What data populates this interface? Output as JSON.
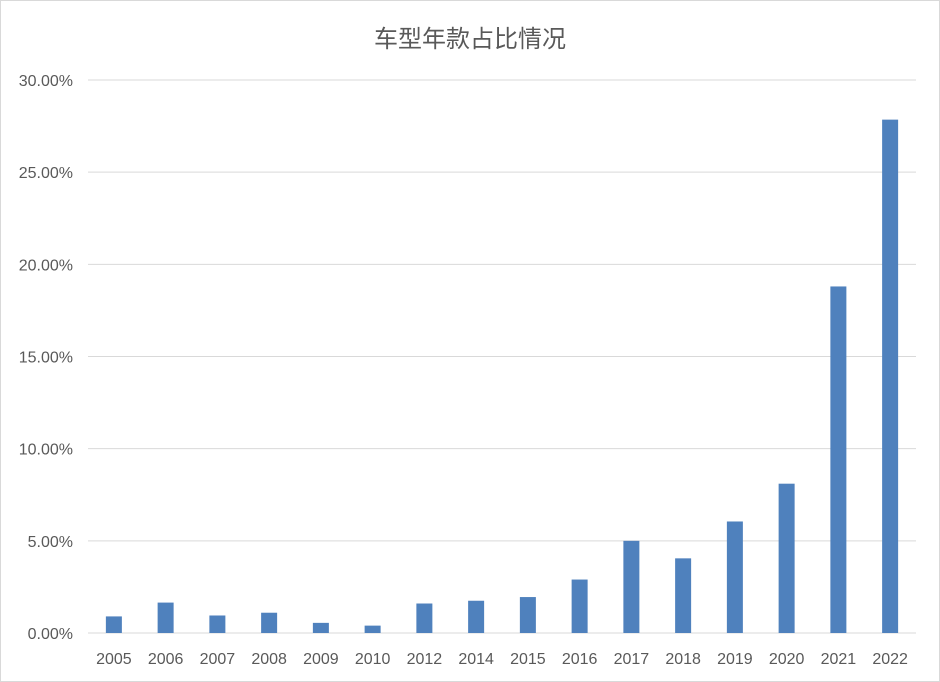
{
  "chart_data": {
    "type": "bar",
    "title": "车型年款占比情况",
    "categories": [
      "2005",
      "2006",
      "2007",
      "2008",
      "2009",
      "2010",
      "2012",
      "2014",
      "2015",
      "2016",
      "2017",
      "2018",
      "2019",
      "2020",
      "2021",
      "2022"
    ],
    "values": [
      0.9,
      1.65,
      0.95,
      1.1,
      0.55,
      0.4,
      1.6,
      1.75,
      1.95,
      2.9,
      5.0,
      4.05,
      6.05,
      8.1,
      18.8,
      27.85
    ],
    "ylim": [
      0,
      30
    ],
    "yticks": [
      0,
      5,
      10,
      15,
      20,
      25,
      30
    ],
    "ytick_labels": [
      "0.00%",
      "5.00%",
      "10.00%",
      "15.00%",
      "20.00%",
      "25.00%",
      "30.00%"
    ],
    "grid": true,
    "legend": "none",
    "bar_color": "#4f81bd",
    "grid_color": "#d9d9d9",
    "text_color": "#595959"
  }
}
